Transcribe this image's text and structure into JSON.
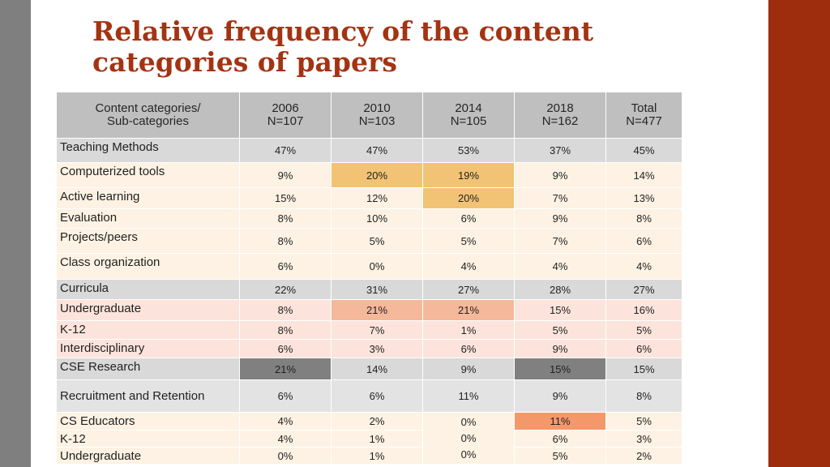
{
  "slide": {
    "title_line1": "Relative frequency of the content",
    "title_line2": "categories of papers"
  },
  "colors": {
    "gray": "#d9d9d9",
    "header_gray": "#bfbfbf",
    "cream": "#fdf2e3",
    "pink": "#fce4dc",
    "light_blue_gray": "#e3e3e3",
    "hl_orange": "#f2c374",
    "hl_salmon": "#f5b89a",
    "hl_dark": "#808080",
    "hl_red_orange": "#f4986a",
    "accent_bar": "#9e2d0e",
    "title": "#a43312"
  },
  "table": {
    "headers": [
      {
        "line1": "Content categories/",
        "line2": "Sub-categories"
      },
      {
        "line1": "2006",
        "line2": "N=107"
      },
      {
        "line1": "2010",
        "line2": "N=103"
      },
      {
        "line1": "2014",
        "line2": "N=105"
      },
      {
        "line1": "2018",
        "line2": "N=162"
      },
      {
        "line1": "Total",
        "line2": "N=477"
      }
    ],
    "rows": [
      {
        "label": "Teaching Methods",
        "values": [
          "47%",
          "47%",
          "53%",
          "37%",
          "45%"
        ]
      },
      {
        "label": "Computerized tools",
        "values": [
          "9%",
          "20%",
          "19%",
          "9%",
          "14%"
        ]
      },
      {
        "label": "Active learning",
        "values": [
          "15%",
          "12%",
          "20%",
          "7%",
          "13%"
        ]
      },
      {
        "label": "Evaluation",
        "values": [
          "8%",
          "10%",
          "6%",
          "9%",
          "8%"
        ]
      },
      {
        "label": "Projects/peers",
        "values": [
          "8%",
          "5%",
          "5%",
          "7%",
          "6%"
        ]
      },
      {
        "label": "Class organization",
        "values": [
          "6%",
          "0%",
          "4%",
          "4%",
          "4%"
        ]
      },
      {
        "label": "Curricula",
        "values": [
          "22%",
          "31%",
          "27%",
          "28%",
          "27%"
        ]
      },
      {
        "label": "Undergraduate",
        "values": [
          "8%",
          "21%",
          "21%",
          "15%",
          "16%"
        ]
      },
      {
        "label": "K-12",
        "values": [
          "8%",
          "7%",
          "1%",
          "5%",
          "5%"
        ]
      },
      {
        "label": "Interdisciplinary",
        "values": [
          "6%",
          "3%",
          "6%",
          "9%",
          "6%"
        ]
      },
      {
        "label": "CSE Research",
        "values": [
          "21%",
          "14%",
          "9%",
          "15%",
          "15%"
        ]
      },
      {
        "label": "Recruitment and Retention",
        "values": [
          "6%",
          "6%",
          "11%",
          "9%",
          "8%"
        ]
      },
      {
        "label": "CS Educators",
        "values": [
          "4%",
          "2%",
          "0%",
          "11%",
          "5%"
        ]
      },
      {
        "label": "K-12",
        "values": [
          "4%",
          "1%",
          "0%",
          "6%",
          "3%"
        ]
      },
      {
        "label": "Undergraduate",
        "values": [
          "0%",
          "1%",
          "0%",
          "5%",
          "2%"
        ]
      }
    ]
  }
}
